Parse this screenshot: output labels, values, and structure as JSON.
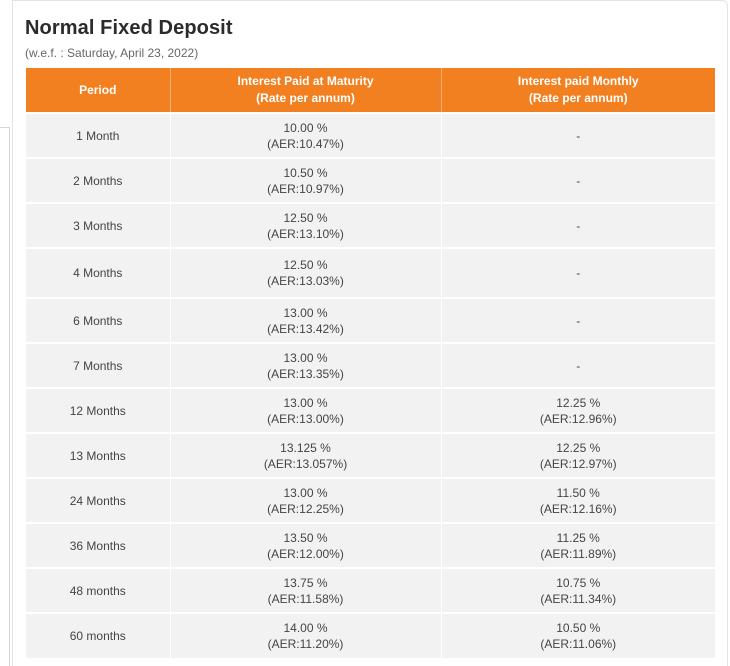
{
  "title": "Normal Fixed Deposit",
  "subtitle": "(w.e.f. : Saturday, April 23, 2022)",
  "table": {
    "headers": [
      {
        "line1": "Period",
        "line2": ""
      },
      {
        "line1": "Interest Paid at Maturity",
        "line2": "(Rate per annum)"
      },
      {
        "line1": "Interest paid Monthly",
        "line2": "(Rate per annum)"
      }
    ],
    "rows": [
      {
        "period": "1 Month",
        "maturity_rate": "10.00 %",
        "maturity_aer": "(AER:10.47%)",
        "monthly_rate": "-",
        "monthly_aer": ""
      },
      {
        "period": "2 Months",
        "maturity_rate": "10.50 %",
        "maturity_aer": "(AER:10.97%)",
        "monthly_rate": "-",
        "monthly_aer": ""
      },
      {
        "period": "3 Months",
        "maturity_rate": "12.50 %",
        "maturity_aer": "(AER:13.10%)",
        "monthly_rate": "-",
        "monthly_aer": ""
      },
      {
        "period": "4 Months",
        "maturity_rate": "12.50 %",
        "maturity_aer": "(AER:13.03%)",
        "monthly_rate": "-",
        "monthly_aer": ""
      },
      {
        "period": "6 Months",
        "maturity_rate": "13.00 %",
        "maturity_aer": "(AER:13.42%)",
        "monthly_rate": "-",
        "monthly_aer": ""
      },
      {
        "period": "7 Months",
        "maturity_rate": "13.00 %",
        "maturity_aer": "(AER:13.35%)",
        "monthly_rate": "-",
        "monthly_aer": ""
      },
      {
        "period": "12 Months",
        "maturity_rate": "13.00 %",
        "maturity_aer": "(AER:13.00%)",
        "monthly_rate": "12.25 %",
        "monthly_aer": "(AER:12.96%)"
      },
      {
        "period": "13 Months",
        "maturity_rate": "13.125 %",
        "maturity_aer": "(AER:13.057%)",
        "monthly_rate": "12.25 %",
        "monthly_aer": "(AER:12.97%)"
      },
      {
        "period": "24 Months",
        "maturity_rate": "13.00 %",
        "maturity_aer": "(AER:12.25%)",
        "monthly_rate": "11.50 %",
        "monthly_aer": "(AER:12.16%)"
      },
      {
        "period": "36 Months",
        "maturity_rate": "13.50 %",
        "maturity_aer": "(AER:12.00%)",
        "monthly_rate": "11.25 %",
        "monthly_aer": "(AER:11.89%)"
      },
      {
        "period": "48 months",
        "maturity_rate": "13.75 %",
        "maturity_aer": "(AER:11.58%)",
        "monthly_rate": "10.75 %",
        "monthly_aer": "(AER:11.34%)"
      },
      {
        "period": "60 months",
        "maturity_rate": "14.00 %",
        "maturity_aer": "(AER:11.20%)",
        "monthly_rate": "10.50 %",
        "monthly_aer": "(AER:11.06%)"
      }
    ]
  },
  "colors": {
    "header_bg": "#f28020",
    "row_bg": "#f2f2f2"
  }
}
